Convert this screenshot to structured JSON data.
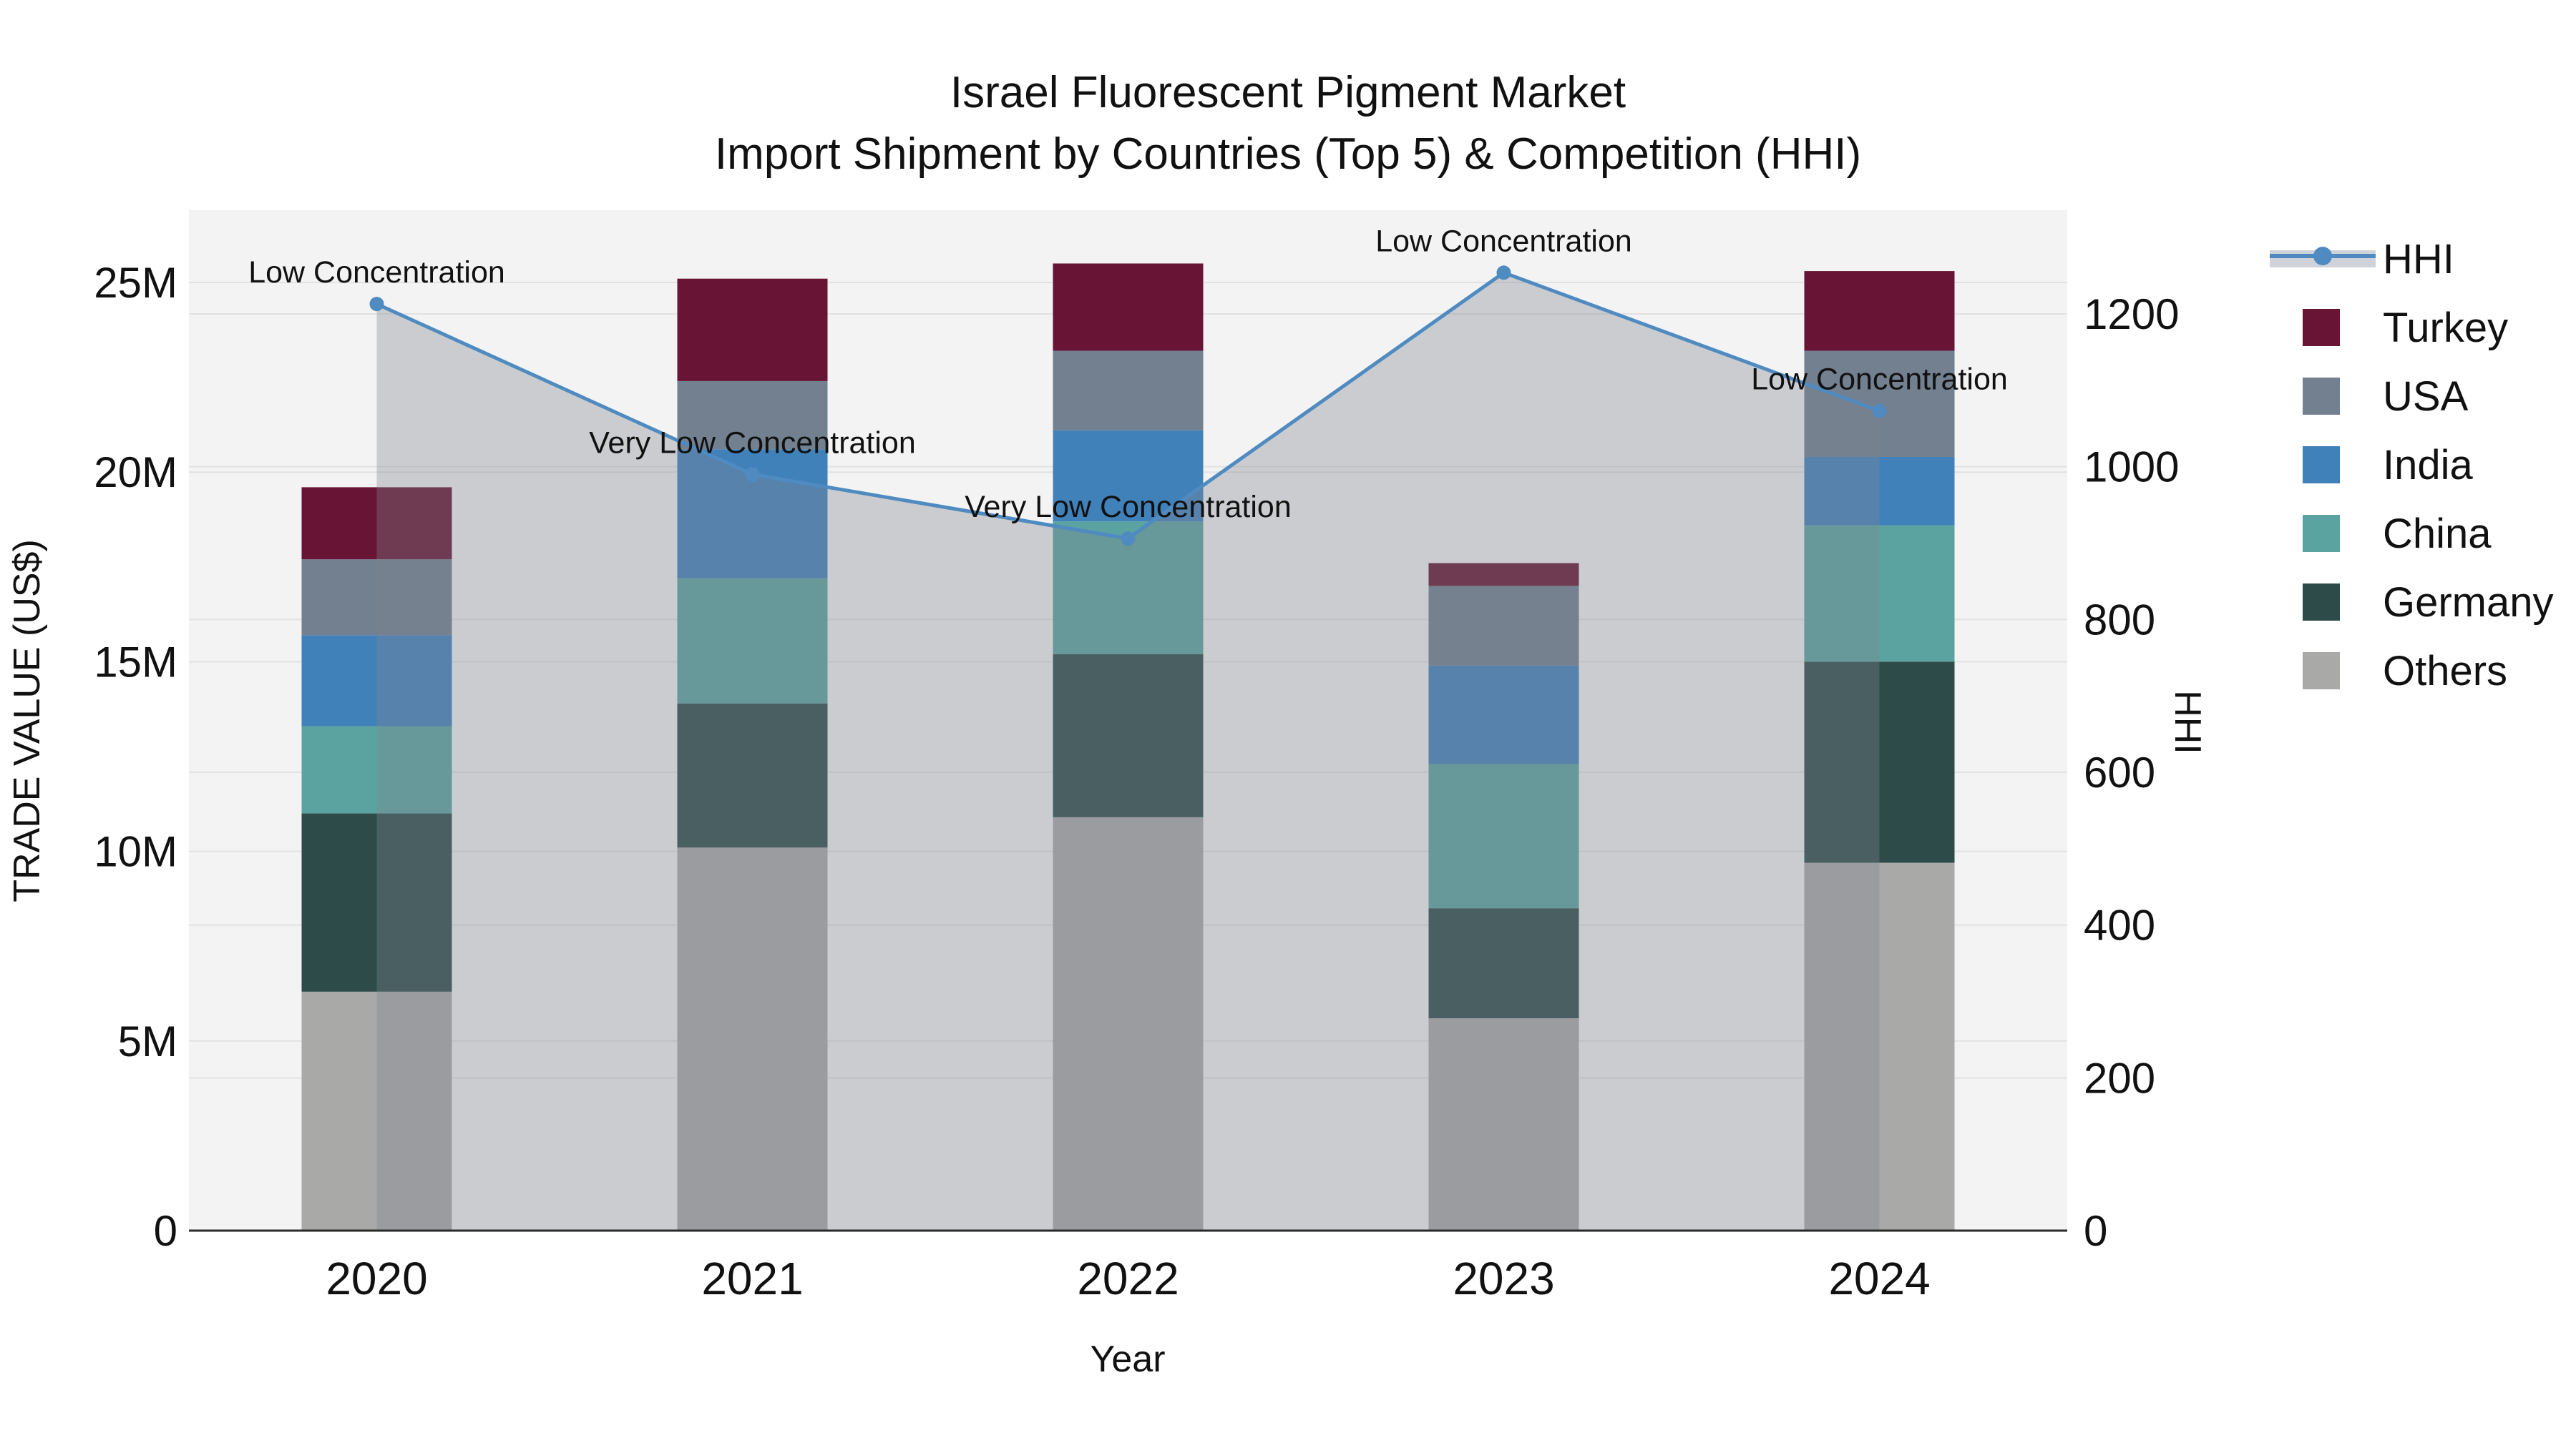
{
  "title": {
    "line1": "Israel Fluorescent Pigment Market",
    "line2": "Import Shipment by Countries (Top 5) & Competition (HHI)"
  },
  "axes": {
    "left_label": "TRADE VALUE (US$)",
    "right_label": "HHI",
    "bottom_label": "Year",
    "left_ticks": [
      "0",
      "5M",
      "10M",
      "15M",
      "20M",
      "25M"
    ],
    "left_tick_values_millions": [
      0,
      5,
      10,
      15,
      20,
      25
    ],
    "right_ticks": [
      "0",
      "200",
      "400",
      "600",
      "800",
      "1000",
      "1200"
    ],
    "right_tick_values": [
      0,
      200,
      400,
      600,
      800,
      1000,
      1200
    ]
  },
  "legend": {
    "items": [
      {
        "label": "HHI",
        "swatch": "line",
        "color": "#4f8bc0",
        "band_color": "#cfd3d9"
      },
      {
        "label": "Turkey",
        "swatch": "square",
        "color": "#681434"
      },
      {
        "label": "USA",
        "swatch": "square",
        "color": "#72808f"
      },
      {
        "label": "India",
        "swatch": "square",
        "color": "#4181ba"
      },
      {
        "label": "China",
        "swatch": "square",
        "color": "#5ba3a0"
      },
      {
        "label": "Germany",
        "swatch": "square",
        "color": "#2d4c49"
      },
      {
        "label": "Others",
        "swatch": "square",
        "color": "#a9aaa8"
      }
    ]
  },
  "chart_data": {
    "type": "bar",
    "subtype": "stacked-bar-with-line",
    "title": "Israel Fluorescent Pigment Market",
    "subtitle": "Import Shipment by Countries (Top 5) & Competition (HHI)",
    "categories": [
      "2020",
      "2021",
      "2022",
      "2023",
      "2024"
    ],
    "bar_value_unit": "million US$",
    "series": [
      {
        "name": "Others",
        "color": "#a9aaa8",
        "values": [
          6.3,
          10.1,
          10.9,
          5.6,
          9.7
        ]
      },
      {
        "name": "Germany",
        "color": "#2d4c49",
        "values": [
          4.7,
          3.8,
          4.3,
          2.9,
          5.3
        ]
      },
      {
        "name": "China",
        "color": "#5ba3a0",
        "values": [
          2.3,
          3.3,
          3.5,
          3.8,
          3.6
        ]
      },
      {
        "name": "India",
        "color": "#4181ba",
        "values": [
          2.4,
          3.4,
          2.4,
          2.6,
          1.8
        ]
      },
      {
        "name": "USA",
        "color": "#72808f",
        "values": [
          2.0,
          1.8,
          2.1,
          2.1,
          2.8
        ]
      },
      {
        "name": "Turkey",
        "color": "#681434",
        "values": [
          1.9,
          2.7,
          2.3,
          0.6,
          2.1
        ]
      }
    ],
    "bar_totals_millions": [
      19.6,
      25.1,
      25.5,
      17.6,
      25.3
    ],
    "line": {
      "name": "HHI",
      "axis": "right",
      "color": "#4f8bc0",
      "area_fill": "#7f858e",
      "area_opacity": 0.35,
      "values": [
        1213,
        990,
        906,
        1254,
        1073
      ]
    },
    "annotations": [
      {
        "category": "2020",
        "text": "Low Concentration"
      },
      {
        "category": "2021",
        "text": "Very Low Concentration"
      },
      {
        "category": "2022",
        "text": "Very Low Concentration"
      },
      {
        "category": "2023",
        "text": "Low Concentration"
      },
      {
        "category": "2024",
        "text": "Low Concentration"
      }
    ],
    "xlabel": "Year",
    "ylabel": "TRADE VALUE (US$)",
    "y2label": "HHI",
    "ylim_millions": [
      0,
      26.9
    ],
    "y2lim": [
      0,
      1336
    ],
    "grid": true,
    "legend_position": "right",
    "plot_background": "#f3f3f3",
    "grid_color": "#e2e2e2",
    "axis_line_color": "#2a2a2a"
  }
}
